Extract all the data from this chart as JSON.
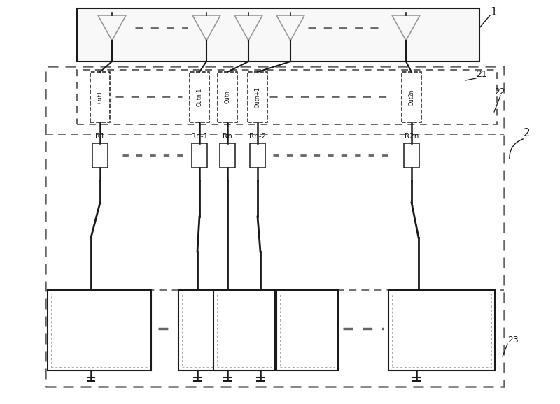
{
  "fig_width": 8.0,
  "fig_height": 5.78,
  "bg_color": "#ffffff",
  "line_color": "#1a1a1a",
  "dashed_color": "#666666",
  "gray_tri": "#999999",
  "label_1": "1",
  "label_2": "2",
  "label_21": "21",
  "label_22": "22",
  "label_23": "23",
  "out_labels": [
    "Out1",
    "Outn-1",
    "Outn",
    "Outn+1",
    "Out2n"
  ],
  "resistor_labels": [
    "R1",
    "Rn-1",
    "Rn",
    "Rn-2",
    "R2n"
  ]
}
